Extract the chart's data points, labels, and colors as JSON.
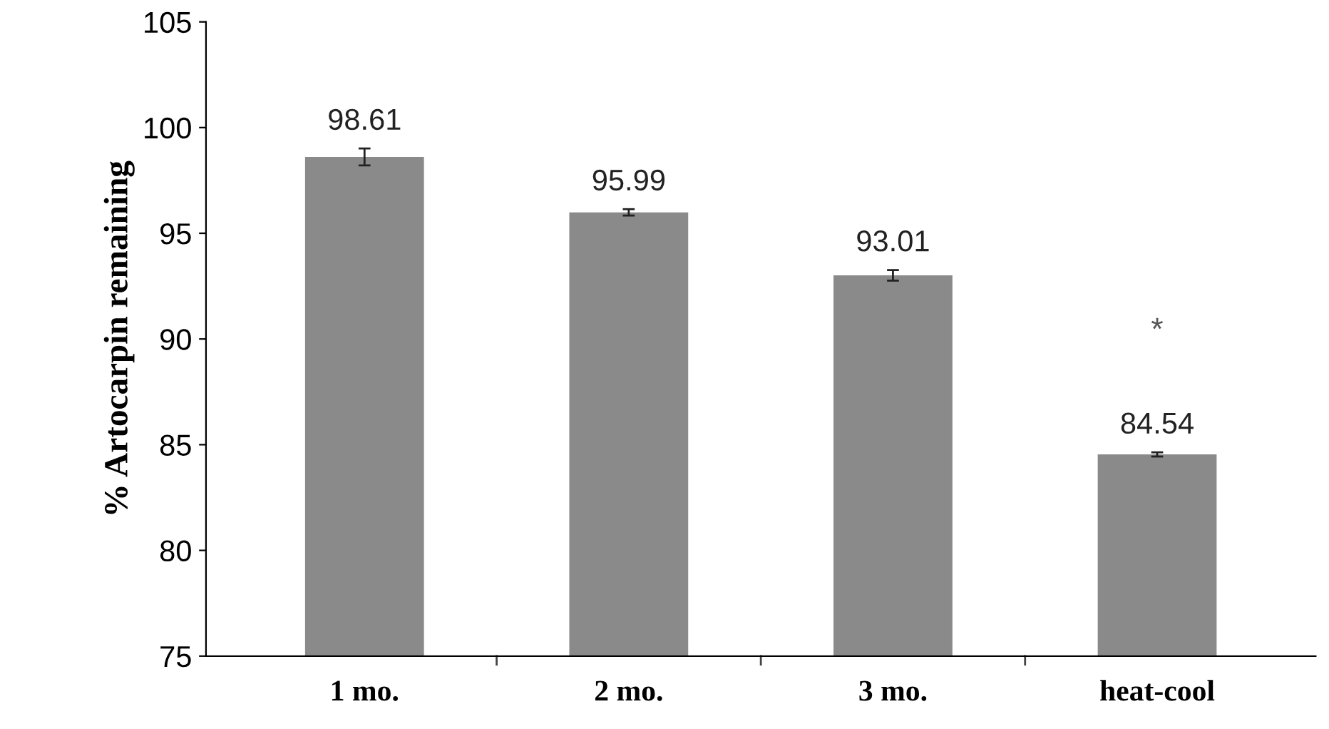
{
  "chart_data": {
    "type": "bar",
    "ylabel": "% Artocarpin remaining",
    "categories": [
      "1 mo.",
      "2 mo.",
      "3 mo.",
      "heat-cool"
    ],
    "values": [
      98.61,
      95.99,
      93.01,
      84.54
    ],
    "errors": [
      0.4,
      0.15,
      0.25,
      0.1
    ],
    "color": "#8a8a8a",
    "data_labels": true,
    "ylim": [
      75,
      105
    ],
    "yticks": [
      75,
      80,
      85,
      90,
      95,
      100,
      105
    ],
    "grid": false,
    "annotations": [
      "*"
    ]
  }
}
